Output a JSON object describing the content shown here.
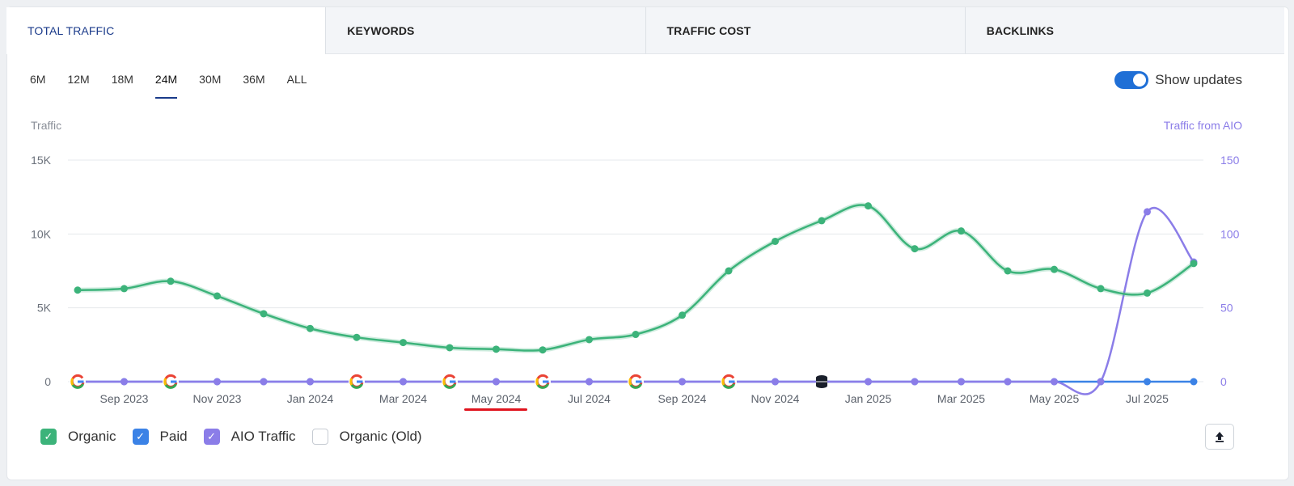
{
  "tabs": [
    {
      "label": "TOTAL TRAFFIC",
      "active": true
    },
    {
      "label": "KEYWORDS",
      "active": false
    },
    {
      "label": "TRAFFIC COST",
      "active": false
    },
    {
      "label": "BACKLINKS",
      "active": false
    }
  ],
  "periods": [
    "6M",
    "12M",
    "18M",
    "24M",
    "30M",
    "36M",
    "ALL"
  ],
  "active_period": "24M",
  "show_updates": {
    "label": "Show updates",
    "on": true
  },
  "axis_titles": {
    "left": "Traffic",
    "right": "Traffic from AIO"
  },
  "legend": [
    {
      "label": "Organic",
      "checked": true,
      "color": "#3cb37a"
    },
    {
      "label": "Paid",
      "checked": true,
      "color": "#3b82e6"
    },
    {
      "label": "AIO Traffic",
      "checked": true,
      "color": "#8b7de8"
    },
    {
      "label": "Organic (Old)",
      "checked": false,
      "color": "#ffffff"
    }
  ],
  "export_icon": "upload-icon",
  "chart_data": {
    "type": "line",
    "x_tick_labels": [
      "Sep 2023",
      "Nov 2023",
      "Jan 2024",
      "Mar 2024",
      "May 2024",
      "Jul 2024",
      "Sep 2024",
      "Nov 2024",
      "Jan 2025",
      "Mar 2025",
      "May 2025",
      "Jul 2025"
    ],
    "x": [
      "Aug 2023",
      "Sep 2023",
      "Oct 2023",
      "Nov 2023",
      "Dec 2023",
      "Jan 2024",
      "Feb 2024",
      "Mar 2024",
      "Apr 2024",
      "May 2024",
      "Jun 2024",
      "Jul 2024",
      "Aug 2024",
      "Sep 2024",
      "Oct 2024",
      "Nov 2024",
      "Dec 2024",
      "Jan 2025",
      "Feb 2025",
      "Mar 2025",
      "Apr 2025",
      "May 2025",
      "Jun 2025",
      "Jul 2025",
      "Aug 2025"
    ],
    "y_left_ticks": [
      "0",
      "5K",
      "10K",
      "15K"
    ],
    "y_left_max": 15000,
    "y_right_ticks": [
      "0",
      "50",
      "100",
      "150"
    ],
    "y_right_max": 150,
    "series": [
      {
        "name": "Organic",
        "axis": "left",
        "color": "#3cb37a",
        "values": [
          6200,
          6300,
          6800,
          5800,
          4600,
          3600,
          3000,
          2650,
          2300,
          2200,
          2150,
          2850,
          3200,
          4500,
          7500,
          9500,
          10900,
          11900,
          9000,
          10200,
          7500,
          7600,
          6300,
          6000,
          8000
        ]
      },
      {
        "name": "Paid",
        "axis": "left",
        "color": "#3b82e6",
        "values": [
          0,
          0,
          0,
          0,
          0,
          0,
          0,
          0,
          0,
          0,
          0,
          0,
          0,
          0,
          0,
          0,
          0,
          0,
          0,
          0,
          0,
          0,
          0,
          0,
          0
        ]
      },
      {
        "name": "AIO Traffic",
        "axis": "right",
        "color": "#8b7de8",
        "values": [
          0,
          0,
          0,
          0,
          0,
          0,
          0,
          0,
          0,
          0,
          0,
          0,
          0,
          0,
          0,
          0,
          0,
          0,
          0,
          0,
          0,
          0,
          0,
          115,
          81
        ]
      }
    ],
    "annotations": [
      {
        "month": "Aug 2023",
        "icon": "google-update-icon"
      },
      {
        "month": "Oct 2023",
        "icon": "google-update-icon"
      },
      {
        "month": "Feb 2024",
        "icon": "google-update-icon"
      },
      {
        "month": "Apr 2024",
        "icon": "google-update-icon"
      },
      {
        "month": "Jun 2024",
        "icon": "google-update-icon"
      },
      {
        "month": "Aug 2024",
        "icon": "google-update-icon"
      },
      {
        "month": "Oct 2024",
        "icon": "google-update-icon"
      },
      {
        "month": "Dec 2024",
        "icon": "database-update-icon"
      }
    ],
    "grid": true,
    "highlighted_tick": "May 2024"
  }
}
